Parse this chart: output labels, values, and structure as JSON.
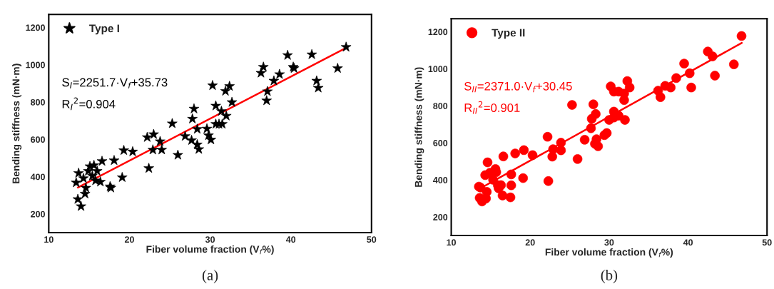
{
  "chart_data": [
    {
      "type": "scatter",
      "xlabel": "Fiber volume fraction (V$_{f}$%)",
      "ylabel": "Bending stiffness (mN·m)",
      "xlim": [
        10,
        50
      ],
      "xticks": [
        10,
        20,
        30,
        40,
        50
      ],
      "ylim": [
        100,
        1270
      ],
      "yticks": [
        200,
        400,
        600,
        800,
        1000,
        1200
      ],
      "legend": "top left",
      "grid": false,
      "annotations": [
        "S$_{I}$=2251.7·V$_{f}$+35.73",
        "R$_{I}$$^{2}$=0.904",
        "(a)"
      ],
      "series": [
        {
          "name": "Type I",
          "marker": "star",
          "color": "#000000",
          "x": [
            46.85,
            39.6,
            42.6,
            45.8,
            40.3,
            40.4,
            36.6,
            36.3,
            38.6,
            37.9,
            43.2,
            43.4,
            37.1,
            37.0,
            30.3,
            32.4,
            31.9,
            32.7,
            28.0,
            27.8,
            30.7,
            31.4,
            32.0,
            30.7,
            31.1,
            31.5,
            25.3,
            22.2,
            23.0,
            23.8,
            26.9,
            28.4,
            29.6,
            29.8,
            30.1,
            27.7,
            28.4,
            28.6,
            26.0,
            22.9,
            24.0,
            20.4,
            19.3,
            18.1,
            16.6,
            15.6,
            14.9,
            16.0,
            15.4,
            15.8,
            16.4,
            13.7,
            13.4,
            14.3,
            14.6,
            14.5,
            17.6,
            17.7,
            22.4,
            19.1,
            13.6,
            14.0,
            15.1
          ],
          "values": [
            1095,
            1051,
            1055,
            981,
            988,
            981,
            988,
            956,
            949,
            914,
            914,
            876,
            857,
            808,
            889,
            885,
            859,
            799,
            764,
            710,
            780,
            751,
            726,
            682,
            682,
            682,
            685,
            611,
            627,
            589,
            617,
            655,
            657,
            621,
            598,
            595,
            572,
            547,
            516,
            544,
            544,
            534,
            541,
            487,
            483,
            461,
            430,
            430,
            404,
            379,
            372,
            419,
            368,
            391,
            340,
            308,
            347,
            340,
            445,
            396,
            279,
            241,
            455
          ]
        },
        {
          "type": "line",
          "color": "#ff0000",
          "marker": "none",
          "line_style": "solid",
          "x": [
            13.6,
            46.8
          ],
          "values": [
            342,
            1090
          ]
        }
      ]
    },
    {
      "type": "scatter",
      "xlabel": "Fiber volume fraction (V$_{f}$%)",
      "ylabel": "Bending stiffness (mN·m)",
      "xlim": [
        10,
        50
      ],
      "xticks": [
        10,
        20,
        30,
        40,
        50
      ],
      "ylim": [
        100,
        1270
      ],
      "yticks": [
        200,
        400,
        600,
        800,
        1000,
        1200
      ],
      "legend": "top left",
      "grid": false,
      "annotations": [
        "S$_{II}$=2371.0·V$_{f}$+30.45",
        "R$_{II}$$^{2}$=0.901",
        "(b)"
      ],
      "series": [
        {
          "name": "Type II",
          "marker": "circle",
          "color": "#ff0000",
          "x": [
            46.77,
            42.5,
            43.1,
            45.8,
            39.5,
            40.2,
            40.4,
            43.4,
            38.5,
            37.8,
            37.1,
            36.2,
            36.5,
            32.3,
            32.6,
            30.2,
            30.6,
            31.2,
            31.9,
            31.9,
            30.6,
            31.2,
            32.0,
            30.0,
            30.6,
            25.3,
            28.0,
            28.3,
            27.8,
            27.7,
            29.7,
            29.4,
            26.9,
            28.4,
            28.2,
            28.6,
            26.0,
            22.2,
            22.9,
            22.8,
            23.9,
            23.9,
            20.3,
            19.2,
            18.1,
            16.6,
            14.6,
            15.6,
            14.9,
            15.7,
            14.3,
            15.3,
            17.6,
            17.6,
            19.1,
            22.3,
            15.9,
            16.3,
            16.0,
            16.5,
            17.5,
            13.5,
            13.7,
            14.5,
            13.6,
            14.4,
            13.9
          ],
          "values": [
            1177,
            1093,
            1067,
            1024,
            1028,
            976,
            899,
            963,
            950,
            899,
            908,
            882,
            847,
            934,
            899,
            905,
            877,
            877,
            866,
            831,
            769,
            747,
            724,
            724,
            737,
            805,
            808,
            756,
            730,
            679,
            653,
            642,
            617,
            620,
            595,
            582,
            513,
            633,
            566,
            526,
            601,
            560,
            534,
            561,
            543,
            527,
            495,
            459,
            439,
            442,
            426,
            401,
            430,
            371,
            410,
            394,
            372,
            372,
            355,
            316,
            306,
            364,
            359,
            336,
            303,
            300,
            284
          ]
        },
        {
          "type": "line",
          "color": "#ff0000",
          "marker": "none",
          "line_style": "solid",
          "x": [
            14.2,
            46.8
          ],
          "values": [
            367,
            1140
          ]
        }
      ]
    }
  ]
}
